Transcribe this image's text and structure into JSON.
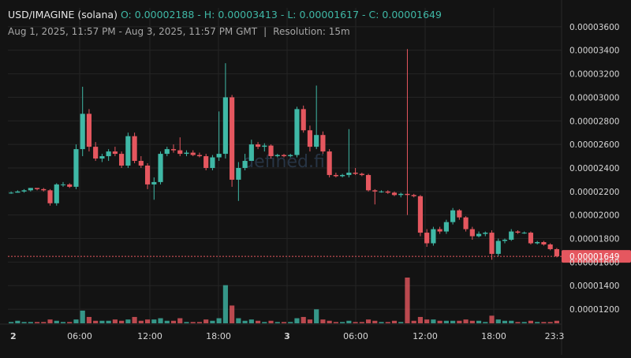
{
  "header": {
    "symbol": "USD/IMAGINE (solana)",
    "ohlc_label": "O: 0.00002188 - H: 0.00003413 - L: 0.00001617 - C: 0.00001649",
    "range": "Aug 1, 2025, 11:57 PM - Aug 3, 2025, 11:57 PM GMT",
    "separator": "|",
    "resolution": "Resolution: 15m"
  },
  "watermark": "defined.fi",
  "colors": {
    "up": "#3fb8a6",
    "down": "#e5575f",
    "background": "#131313",
    "grid": "#242424",
    "axis_text": "#d6d6d6",
    "price_line": "#e5575f"
  },
  "chart_data": {
    "type": "candlestick",
    "x_labels": [
      "2",
      "06:00",
      "12:00",
      "18:00",
      "3",
      "06:00",
      "12:00",
      "18:00",
      "23:3"
    ],
    "y_ticks": [
      "0.00003600",
      "0.00003400",
      "0.00003200",
      "0.00003000",
      "0.00002800",
      "0.00002600",
      "0.00002400",
      "0.00002200",
      "0.00002000",
      "0.00001800",
      "0.00001600",
      "0.00001400",
      "0.00001200"
    ],
    "ylim": [
      1.08e-05,
      3.76e-05
    ],
    "last_price": "0.00001649",
    "open": 2.188e-05,
    "high": 3.413e-05,
    "low": 1.617e-05,
    "close": 1.649e-05,
    "grid": true,
    "volume": true,
    "series": [
      {
        "name": "price",
        "candles": [
          [
            2.19e-05,
            2.2e-05,
            2.18e-05,
            2.19e-05
          ],
          [
            2.19e-05,
            2.21e-05,
            2.19e-05,
            2.2e-05
          ],
          [
            2.2e-05,
            2.22e-05,
            2.19e-05,
            2.21e-05
          ],
          [
            2.21e-05,
            2.23e-05,
            2.2e-05,
            2.23e-05
          ],
          [
            2.23e-05,
            2.23e-05,
            2.21e-05,
            2.22e-05
          ],
          [
            2.22e-05,
            2.23e-05,
            2.2e-05,
            2.21e-05
          ],
          [
            2.21e-05,
            2.22e-05,
            2.08e-05,
            2.1e-05
          ],
          [
            2.1e-05,
            2.27e-05,
            2.08e-05,
            2.26e-05
          ],
          [
            2.26e-05,
            2.28e-05,
            2.24e-05,
            2.26e-05
          ],
          [
            2.26e-05,
            2.27e-05,
            2.23e-05,
            2.24e-05
          ],
          [
            2.24e-05,
            2.6e-05,
            2.22e-05,
            2.56e-05
          ],
          [
            2.56e-05,
            3.09e-05,
            2.5e-05,
            2.86e-05
          ],
          [
            2.86e-05,
            2.9e-05,
            2.54e-05,
            2.58e-05
          ],
          [
            2.58e-05,
            2.62e-05,
            2.46e-05,
            2.48e-05
          ],
          [
            2.48e-05,
            2.52e-05,
            2.45e-05,
            2.5e-05
          ],
          [
            2.5e-05,
            2.56e-05,
            2.46e-05,
            2.54e-05
          ],
          [
            2.54e-05,
            2.58e-05,
            2.5e-05,
            2.52e-05
          ],
          [
            2.52e-05,
            2.54e-05,
            2.4e-05,
            2.42e-05
          ],
          [
            2.42e-05,
            2.7e-05,
            2.4e-05,
            2.67e-05
          ],
          [
            2.67e-05,
            2.7e-05,
            2.44e-05,
            2.46e-05
          ],
          [
            2.46e-05,
            2.5e-05,
            2.4e-05,
            2.42e-05
          ],
          [
            2.42e-05,
            2.44e-05,
            2.22e-05,
            2.26e-05
          ],
          [
            2.26e-05,
            2.32e-05,
            2.13e-05,
            2.28e-05
          ],
          [
            2.28e-05,
            2.54e-05,
            2.26e-05,
            2.52e-05
          ],
          [
            2.52e-05,
            2.58e-05,
            2.5e-05,
            2.56e-05
          ],
          [
            2.56e-05,
            2.6e-05,
            2.53e-05,
            2.55e-05
          ],
          [
            2.55e-05,
            2.66e-05,
            2.5e-05,
            2.52e-05
          ],
          [
            2.52e-05,
            2.55e-05,
            2.5e-05,
            2.53e-05
          ],
          [
            2.53e-05,
            2.55e-05,
            2.5e-05,
            2.51e-05
          ],
          [
            2.51e-05,
            2.53e-05,
            2.49e-05,
            2.5e-05
          ],
          [
            2.5e-05,
            2.52e-05,
            2.38e-05,
            2.4e-05
          ],
          [
            2.4e-05,
            2.51e-05,
            2.38e-05,
            2.49e-05
          ],
          [
            2.49e-05,
            2.88e-05,
            2.46e-05,
            2.52e-05
          ],
          [
            2.52e-05,
            3.29e-05,
            2.48e-05,
            3e-05
          ],
          [
            3e-05,
            3.02e-05,
            2.24e-05,
            2.3e-05
          ],
          [
            2.3e-05,
            2.45e-05,
            2.12e-05,
            2.4e-05
          ],
          [
            2.4e-05,
            2.52e-05,
            2.38e-05,
            2.46e-05
          ],
          [
            2.46e-05,
            2.64e-05,
            2.46e-05,
            2.6e-05
          ],
          [
            2.6e-05,
            2.62e-05,
            2.56e-05,
            2.58e-05
          ],
          [
            2.58e-05,
            2.61e-05,
            2.54e-05,
            2.59e-05
          ],
          [
            2.59e-05,
            2.6e-05,
            2.48e-05,
            2.5e-05
          ],
          [
            2.5e-05,
            2.52e-05,
            2.49e-05,
            2.51e-05
          ],
          [
            2.51e-05,
            2.52e-05,
            2.49e-05,
            2.5e-05
          ],
          [
            2.5e-05,
            2.52e-05,
            2.49e-05,
            2.51e-05
          ],
          [
            2.51e-05,
            2.92e-05,
            2.49e-05,
            2.9e-05
          ],
          [
            2.9e-05,
            2.93e-05,
            2.7e-05,
            2.72e-05
          ],
          [
            2.72e-05,
            2.76e-05,
            2.54e-05,
            2.58e-05
          ],
          [
            2.58e-05,
            3.1e-05,
            2.56e-05,
            2.68e-05
          ],
          [
            2.68e-05,
            2.71e-05,
            2.52e-05,
            2.54e-05
          ],
          [
            2.54e-05,
            2.56e-05,
            2.32e-05,
            2.34e-05
          ],
          [
            2.34e-05,
            2.36e-05,
            2.32e-05,
            2.33e-05
          ],
          [
            2.33e-05,
            2.35e-05,
            2.32e-05,
            2.34e-05
          ],
          [
            2.34e-05,
            2.73e-05,
            2.32e-05,
            2.36e-05
          ],
          [
            2.36e-05,
            2.4e-05,
            2.34e-05,
            2.35e-05
          ],
          [
            2.35e-05,
            2.36e-05,
            2.33e-05,
            2.34e-05
          ],
          [
            2.34e-05,
            2.35e-05,
            2.2e-05,
            2.21e-05
          ],
          [
            2.21e-05,
            2.22e-05,
            2.09e-05,
            2.2e-05
          ],
          [
            2.2e-05,
            2.21e-05,
            2.19e-05,
            2.2e-05
          ],
          [
            2.2e-05,
            2.21e-05,
            2.18e-05,
            2.19e-05
          ],
          [
            2.19e-05,
            2.2e-05,
            2.16e-05,
            2.17e-05
          ],
          [
            2.17e-05,
            2.19e-05,
            2.15e-05,
            2.18e-05
          ],
          [
            2.18e-05,
            3.41e-05,
            2e-05,
            2.17e-05
          ],
          [
            2.17e-05,
            2.18e-05,
            2.15e-05,
            2.16e-05
          ],
          [
            2.16e-05,
            2.17e-05,
            1.82e-05,
            1.85e-05
          ],
          [
            1.85e-05,
            1.88e-05,
            1.73e-05,
            1.76e-05
          ],
          [
            1.76e-05,
            1.9e-05,
            1.74e-05,
            1.88e-05
          ],
          [
            1.88e-05,
            1.9e-05,
            1.84e-05,
            1.86e-05
          ],
          [
            1.86e-05,
            1.96e-05,
            1.84e-05,
            1.94e-05
          ],
          [
            1.94e-05,
            2.06e-05,
            1.92e-05,
            2.04e-05
          ],
          [
            2.04e-05,
            2.05e-05,
            1.96e-05,
            1.98e-05
          ],
          [
            1.98e-05,
            1.99e-05,
            1.86e-05,
            1.88e-05
          ],
          [
            1.88e-05,
            1.9e-05,
            1.79e-05,
            1.82e-05
          ],
          [
            1.82e-05,
            1.86e-05,
            1.81e-05,
            1.84e-05
          ],
          [
            1.84e-05,
            1.86e-05,
            1.82e-05,
            1.85e-05
          ],
          [
            1.85e-05,
            1.87e-05,
            1.62e-05,
            1.67e-05
          ],
          [
            1.67e-05,
            1.8e-05,
            1.65e-05,
            1.78e-05
          ],
          [
            1.78e-05,
            1.8e-05,
            1.76e-05,
            1.79e-05
          ],
          [
            1.79e-05,
            1.88e-05,
            1.78e-05,
            1.86e-05
          ],
          [
            1.86e-05,
            1.87e-05,
            1.84e-05,
            1.85e-05
          ],
          [
            1.85e-05,
            1.86e-05,
            1.84e-05,
            1.85e-05
          ],
          [
            1.85e-05,
            1.86e-05,
            1.75e-05,
            1.76e-05
          ],
          [
            1.76e-05,
            1.78e-05,
            1.75e-05,
            1.77e-05
          ],
          [
            1.77e-05,
            1.78e-05,
            1.74e-05,
            1.75e-05
          ],
          [
            1.75e-05,
            1.76e-05,
            1.7e-05,
            1.71e-05
          ],
          [
            1.71e-05,
            1.72e-05,
            1.64e-05,
            1.65e-05
          ]
        ],
        "volumes": [
          1,
          2,
          1,
          1,
          1,
          1,
          3,
          2,
          1,
          1,
          3,
          10,
          5,
          2,
          2,
          2,
          3,
          2,
          3,
          5,
          2,
          3,
          3,
          4,
          2,
          2,
          4,
          1,
          1,
          1,
          3,
          2,
          4,
          30,
          14,
          4,
          2,
          3,
          2,
          1,
          2,
          1,
          1,
          1,
          4,
          5,
          3,
          11,
          3,
          2,
          1,
          1,
          2,
          1,
          1,
          3,
          2,
          1,
          1,
          2,
          1,
          36,
          2,
          5,
          3,
          3,
          2,
          2,
          2,
          2,
          3,
          2,
          2,
          1,
          6,
          3,
          2,
          2,
          1,
          1,
          2,
          1,
          1,
          1,
          2
        ]
      }
    ]
  }
}
